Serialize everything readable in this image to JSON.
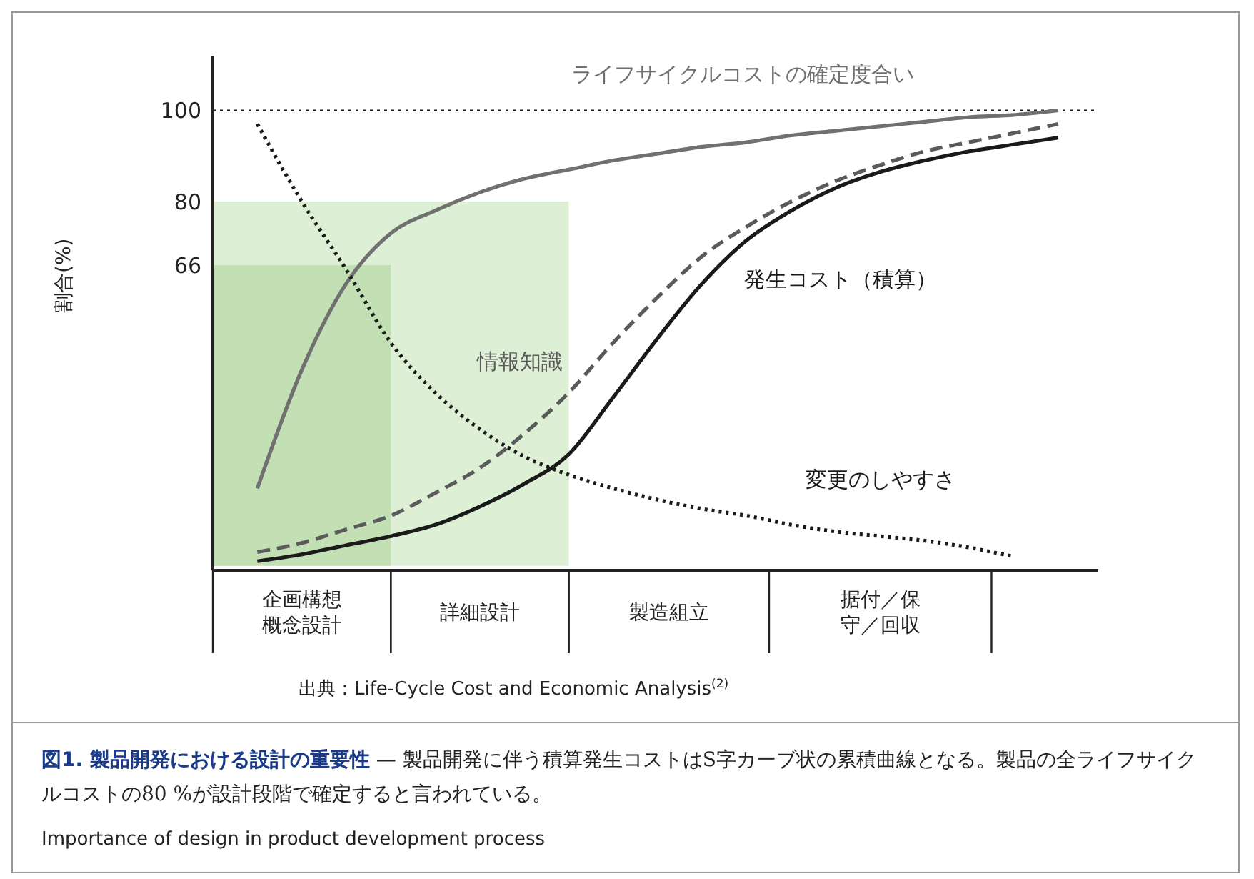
{
  "chart_data": {
    "type": "line",
    "ylabel": "割合(%)",
    "title": "図1. 製品開発における設計の重要性",
    "subtitle": "— 製品開発に伴う積算発生コストはS字カーブ状の累積曲線となる。製品の全ライフサイクルコストの80 %が設計段階で確定すると言われている。",
    "categories": [
      null,
      null,
      "企画構想概念設計",
      null,
      null,
      null,
      "詳細設計",
      null,
      null,
      null,
      "製造組立",
      null,
      null,
      null,
      null,
      "据付／保守／回収",
      null,
      null,
      null,
      null
    ],
    "ylim": [
      -1,
      112
    ],
    "yticks": [
      66,
      80,
      100
    ],
    "grid": false,
    "legend": false,
    "marker": "none",
    "series": [
      {
        "type": "area",
        "color": "#ddefd5",
        "values": [
          80,
          80,
          80,
          80,
          80,
          80,
          80,
          80,
          80,
          null,
          null,
          null,
          null,
          null,
          null,
          null,
          null,
          null,
          null,
          null
        ]
      },
      {
        "type": "area",
        "color": "#c2e0b4",
        "values": [
          66,
          66,
          66,
          66,
          66,
          null,
          null,
          null,
          null,
          null,
          null,
          null,
          null,
          null,
          null,
          null,
          null,
          null,
          null,
          null
        ]
      },
      {
        "name": "ライフサイクルコストの確定度合い",
        "color": "#707070",
        "line_style": "solid",
        "values": [
          null,
          17,
          43,
          62,
          73,
          78,
          82,
          85,
          87,
          89,
          90.5,
          92,
          93,
          94.5,
          95.5,
          96.5,
          97.5,
          98.5,
          99,
          100
        ]
      },
      {
        "name": "情報知識",
        "color": "#5a5a5a",
        "line_style": "dashed",
        "values": [
          null,
          3,
          5,
          8,
          11,
          16,
          21.5,
          29,
          38,
          49,
          59,
          68,
          74.5,
          80,
          84.5,
          88,
          91,
          93,
          95,
          97
        ]
      },
      {
        "name": "発生コスト（積算）",
        "color": "#1a1a1a",
        "line_style": "solid",
        "values": [
          null,
          1,
          2.5,
          4.5,
          6.5,
          9,
          13,
          18,
          24.5,
          37,
          50,
          62,
          71.5,
          78,
          83,
          86.5,
          89,
          91,
          92.5,
          94
        ]
      },
      {
        "name": "変更のしやすさ",
        "color": "#1a1a1a",
        "line_style": "dotted",
        "values": [
          null,
          97,
          80,
          65,
          49,
          38,
          30,
          24,
          20,
          17,
          14.5,
          12.5,
          11,
          9,
          7.5,
          6.5,
          5.5,
          4,
          2,
          null
        ]
      }
    ],
    "ref_lines": [
      {
        "axis": "y",
        "value": 100,
        "line_style": "dotted",
        "color": "#1a1a1a"
      }
    ],
    "annotations": [
      "出典：Life-Cycle Cost and Economic Analysis$^{(2)}$",
      "Importance of design in product development process"
    ]
  }
}
